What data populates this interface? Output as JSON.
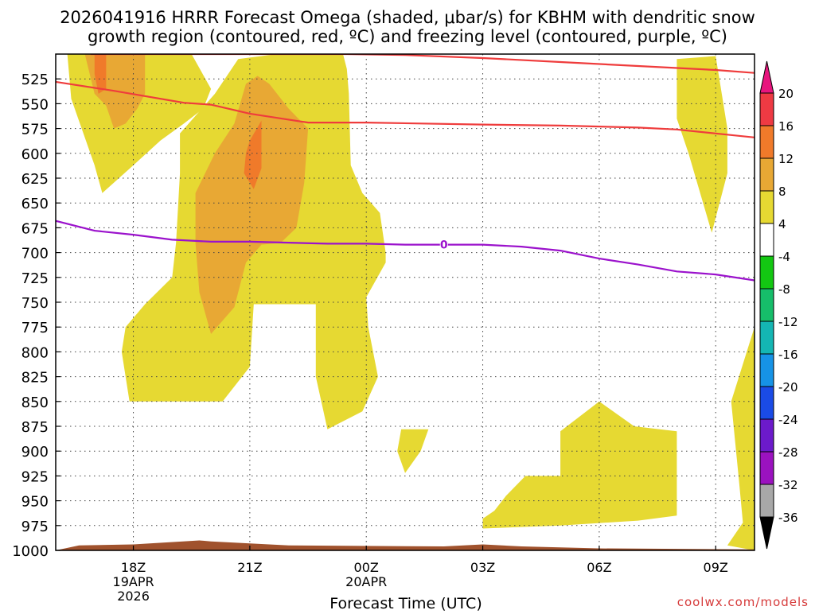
{
  "chart_data": {
    "type": "heatmap",
    "title_line1": "2026041916 HRRR Forecast Omega (shaded, μbar/s) for KBHM with dendritic snow",
    "title_line2": "growth region (contoured, red, ºC) and freezing level (contoured, purple, ºC)",
    "xlabel": "Forecast Time (UTC)",
    "credit": "coolwx.com/models",
    "x_unit": "hours after 2026-04-19 16Z",
    "xlim": [
      0,
      18
    ],
    "ylim": [
      1000,
      500
    ],
    "y_ticks": [
      525,
      550,
      575,
      600,
      625,
      650,
      675,
      700,
      725,
      750,
      775,
      800,
      825,
      850,
      875,
      900,
      925,
      950,
      975,
      1000
    ],
    "x_ticks": [
      {
        "x": 2,
        "label": "18Z",
        "sub1": "19APR",
        "sub2": "2026"
      },
      {
        "x": 5,
        "label": "21Z",
        "sub1": "",
        "sub2": ""
      },
      {
        "x": 8,
        "label": "00Z",
        "sub1": "20APR",
        "sub2": ""
      },
      {
        "x": 11,
        "label": "03Z",
        "sub1": "",
        "sub2": ""
      },
      {
        "x": 14,
        "label": "06Z",
        "sub1": "",
        "sub2": ""
      },
      {
        "x": 17,
        "label": "09Z",
        "sub1": "",
        "sub2": ""
      }
    ],
    "colorbar": {
      "labels": [
        "20",
        "16",
        "12",
        "8",
        "4",
        "-4",
        "-8",
        "-12",
        "-16",
        "-20",
        "-24",
        "-28",
        "-32",
        "-36"
      ],
      "over_color": "#e8157e",
      "under_color": "#000000",
      "colors": [
        "#ee3a43",
        "#f07a2a",
        "#e8a834",
        "#e6d932",
        "#ffffff",
        "#13c712",
        "#16be6a",
        "#14b6b3",
        "#1693e6",
        "#1a4be6",
        "#6c1acb",
        "#9b12bf",
        "#a8a8a8"
      ]
    },
    "fill_regions": [
      {
        "name": "omega-4-8-main",
        "color": "#e6d932",
        "points": [
          [
            0.3,
            500
          ],
          [
            3.5,
            500
          ],
          [
            4,
            535
          ],
          [
            3.8,
            555
          ],
          [
            3.3,
            570
          ],
          [
            2.7,
            587
          ],
          [
            2,
            612
          ],
          [
            1.2,
            640
          ],
          [
            1,
            612
          ],
          [
            0.4,
            545
          ]
        ]
      },
      {
        "name": "omega-4-8-center",
        "color": "#e6d932",
        "points": [
          [
            3.2,
            580
          ],
          [
            4.1,
            540
          ],
          [
            4.7,
            505
          ],
          [
            5.7,
            500
          ],
          [
            7.4,
            500
          ],
          [
            7.5,
            515
          ],
          [
            7.55,
            540
          ],
          [
            7.6,
            612
          ],
          [
            7.9,
            640
          ],
          [
            8.35,
            660
          ],
          [
            8.5,
            700
          ],
          [
            8.5,
            710
          ],
          [
            8,
            745
          ],
          [
            8.05,
            775
          ],
          [
            8.3,
            825
          ],
          [
            7.9,
            860
          ],
          [
            7,
            878
          ],
          [
            6.7,
            825
          ],
          [
            6.7,
            752
          ],
          [
            5.1,
            752
          ],
          [
            5,
            815
          ],
          [
            4.3,
            850
          ],
          [
            1.9,
            850
          ],
          [
            1.7,
            800
          ],
          [
            1.8,
            775
          ],
          [
            2.3,
            752
          ],
          [
            3,
            725
          ],
          [
            3.1,
            690
          ],
          [
            3.2,
            620
          ]
        ]
      },
      {
        "name": "omega-4-8-small",
        "color": "#e6d932",
        "points": [
          [
            8.9,
            878
          ],
          [
            9.6,
            878
          ],
          [
            9.4,
            900
          ],
          [
            9,
            922
          ],
          [
            8.8,
            900
          ]
        ]
      },
      {
        "name": "omega-4-8-sw",
        "color": "#e6d932",
        "points": [
          [
            11,
            968
          ],
          [
            11.3,
            960
          ],
          [
            11.6,
            945
          ],
          [
            12.1,
            925
          ],
          [
            13,
            925
          ],
          [
            13,
            880
          ],
          [
            14,
            850
          ],
          [
            14.9,
            875
          ],
          [
            16,
            880
          ],
          [
            16,
            965
          ],
          [
            15,
            970
          ],
          [
            13,
            975
          ],
          [
            11,
            978
          ]
        ]
      },
      {
        "name": "omega-4-8-ne",
        "color": "#e6d932",
        "points": [
          [
            16,
            505
          ],
          [
            17,
            502
          ],
          [
            17.3,
            575
          ],
          [
            17.3,
            620
          ],
          [
            16.9,
            680
          ],
          [
            16.3,
            600
          ],
          [
            16,
            565
          ]
        ]
      },
      {
        "name": "omega-4-8-se",
        "color": "#e6d932",
        "points": [
          [
            18,
            775
          ],
          [
            18,
            1000
          ],
          [
            17.3,
            995
          ],
          [
            17.7,
            972
          ],
          [
            17.6,
            930
          ],
          [
            17.4,
            850
          ]
        ]
      },
      {
        "name": "omega-8-12-nw",
        "color": "#e8a834",
        "points": [
          [
            0.75,
            500
          ],
          [
            2.3,
            500
          ],
          [
            2.3,
            540
          ],
          [
            2.1,
            555
          ],
          [
            1.8,
            570
          ],
          [
            1.5,
            575
          ],
          [
            1.3,
            552
          ],
          [
            1,
            540
          ]
        ]
      },
      {
        "name": "omega-8-12-center",
        "color": "#e8a834",
        "points": [
          [
            4.9,
            530
          ],
          [
            5.2,
            522
          ],
          [
            5.5,
            530
          ],
          [
            6,
            555
          ],
          [
            6.5,
            575
          ],
          [
            6.4,
            630
          ],
          [
            6.2,
            675
          ],
          [
            5.8,
            690
          ],
          [
            5.3,
            692
          ],
          [
            4.9,
            710
          ],
          [
            4.6,
            755
          ],
          [
            4,
            782
          ],
          [
            3.7,
            740
          ],
          [
            3.6,
            690
          ],
          [
            3.6,
            640
          ],
          [
            4.1,
            600
          ],
          [
            4.6,
            570
          ]
        ]
      },
      {
        "name": "omega-12-16-nw",
        "color": "#f07a2a",
        "points": [
          [
            1,
            500
          ],
          [
            1.3,
            500
          ],
          [
            1.3,
            535
          ],
          [
            1.1,
            540
          ],
          [
            1,
            520
          ]
        ]
      },
      {
        "name": "omega-12-16-center",
        "color": "#f07a2a",
        "points": [
          [
            5,
            587
          ],
          [
            5.3,
            567
          ],
          [
            5.3,
            615
          ],
          [
            5.1,
            636
          ],
          [
            4.85,
            620
          ],
          [
            4.9,
            600
          ]
        ]
      }
    ],
    "red_contours": [
      {
        "name": "red-contour-upper",
        "points": [
          [
            0.9,
            500
          ],
          [
            3,
            500
          ],
          [
            7.5,
            500
          ],
          [
            9,
            501
          ],
          [
            11,
            504
          ],
          [
            13,
            508
          ],
          [
            15,
            512
          ],
          [
            17,
            516
          ],
          [
            18,
            519
          ]
        ]
      },
      {
        "name": "red-contour-lower",
        "points": [
          [
            0,
            528
          ],
          [
            1.5,
            537
          ],
          [
            3.3,
            549
          ],
          [
            4,
            551
          ],
          [
            5,
            560
          ],
          [
            6,
            566
          ],
          [
            6.5,
            569
          ],
          [
            8,
            569
          ],
          [
            11,
            571
          ],
          [
            13,
            572
          ],
          [
            15,
            574
          ],
          [
            16,
            576
          ],
          [
            17,
            580
          ],
          [
            18,
            584
          ]
        ]
      }
    ],
    "freezing_level": {
      "label": "0",
      "label_x": 10,
      "points": [
        [
          0,
          668
        ],
        [
          1,
          678
        ],
        [
          2,
          682
        ],
        [
          3,
          687
        ],
        [
          4,
          689
        ],
        [
          5,
          689
        ],
        [
          6,
          690
        ],
        [
          7,
          691
        ],
        [
          8,
          691
        ],
        [
          9,
          692
        ],
        [
          10,
          692
        ],
        [
          11,
          692
        ],
        [
          12,
          694
        ],
        [
          13,
          698
        ],
        [
          14,
          706
        ],
        [
          15,
          712
        ],
        [
          16,
          719
        ],
        [
          17,
          722
        ],
        [
          18,
          728
        ]
      ]
    },
    "terrain": {
      "color": "#a0522d",
      "points": [
        [
          0,
          1000
        ],
        [
          0.6,
          995
        ],
        [
          2,
          994
        ],
        [
          3.7,
          990
        ],
        [
          4,
          991
        ],
        [
          6,
          995
        ],
        [
          10,
          996
        ],
        [
          11,
          994
        ],
        [
          12,
          996
        ],
        [
          14,
          998
        ],
        [
          18,
          999
        ],
        [
          18,
          1000
        ]
      ]
    }
  }
}
